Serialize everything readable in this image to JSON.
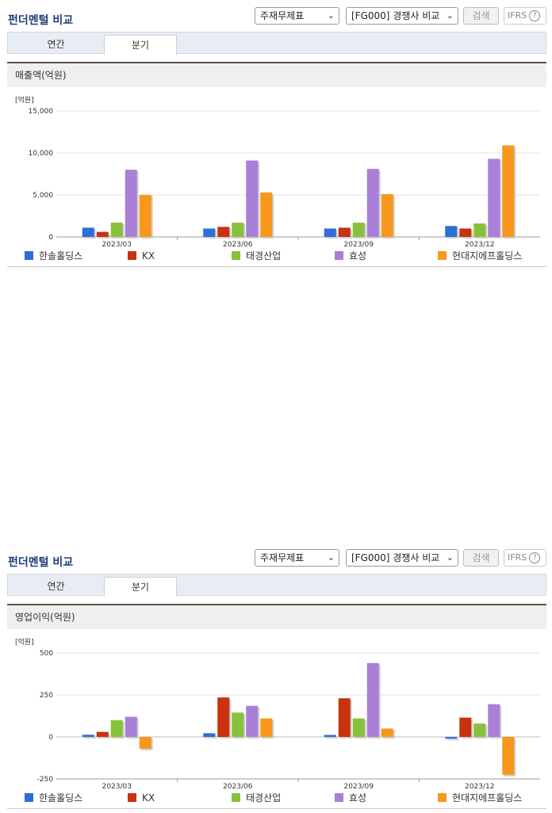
{
  "sections": [
    {
      "title": "펀더멘털 비교",
      "select1": "주재무제표",
      "select2": "[FG000] 경쟁사 비교",
      "search_label": "검색",
      "ifrs_label": "IFRS",
      "tabs": [
        "연간",
        "분기"
      ],
      "active_tab": "분기",
      "chart_label": "매출액(억원)"
    },
    {
      "title": "펀더멘털 비교",
      "select1": "주재무제표",
      "select2": "[FG000] 경쟁사 비교",
      "search_label": "검색",
      "ifrs_label": "IFRS",
      "tabs": [
        "연간",
        "분기"
      ],
      "active_tab": "분기",
      "chart_label": "영업이익(억원)"
    }
  ],
  "chart_data": [
    {
      "type": "bar",
      "title": "매출액(억원)",
      "unit_label": "[억원]",
      "categories": [
        "2023/03",
        "2023/06",
        "2023/09",
        "2023/12"
      ],
      "ylim": [
        0,
        15000
      ],
      "yticks": [
        "15,000",
        "10,000",
        "5,000",
        "0"
      ],
      "ytick_values": [
        15000,
        10000,
        5000,
        0
      ],
      "series": [
        {
          "name": "한솔홀딩스",
          "color": "#2f6ed8",
          "values": [
            1100,
            1000,
            1000,
            1300
          ]
        },
        {
          "name": "KX",
          "color": "#c8320d",
          "values": [
            600,
            1200,
            1100,
            1000
          ]
        },
        {
          "name": "태경산업",
          "color": "#87c23a",
          "values": [
            1700,
            1700,
            1700,
            1600
          ]
        },
        {
          "name": "효성",
          "color": "#a97fd8",
          "values": [
            8000,
            9100,
            8100,
            9300
          ]
        },
        {
          "name": "현대지에프홀딩스",
          "color": "#f7981d",
          "values": [
            5000,
            5300,
            5100,
            10900
          ]
        }
      ]
    },
    {
      "type": "bar",
      "title": "영업이익(억원)",
      "unit_label": "[억원]",
      "categories": [
        "2023/03",
        "2023/06",
        "2023/09",
        "2023/12"
      ],
      "ylim": [
        -250,
        500
      ],
      "yticks": [
        "500",
        "250",
        "0",
        "-250"
      ],
      "ytick_values": [
        500,
        250,
        0,
        -250
      ],
      "series": [
        {
          "name": "한솔홀딩스",
          "color": "#2f6ed8",
          "values": [
            13,
            22,
            12,
            -10
          ]
        },
        {
          "name": "KX",
          "color": "#c8320d",
          "values": [
            30,
            235,
            230,
            115
          ]
        },
        {
          "name": "태경산업",
          "color": "#87c23a",
          "values": [
            100,
            145,
            110,
            80
          ]
        },
        {
          "name": "효성",
          "color": "#a97fd8",
          "values": [
            120,
            185,
            440,
            195
          ]
        },
        {
          "name": "현대지에프홀딩스",
          "color": "#f7981d",
          "values": [
            -70,
            110,
            50,
            -225
          ]
        }
      ]
    }
  ]
}
